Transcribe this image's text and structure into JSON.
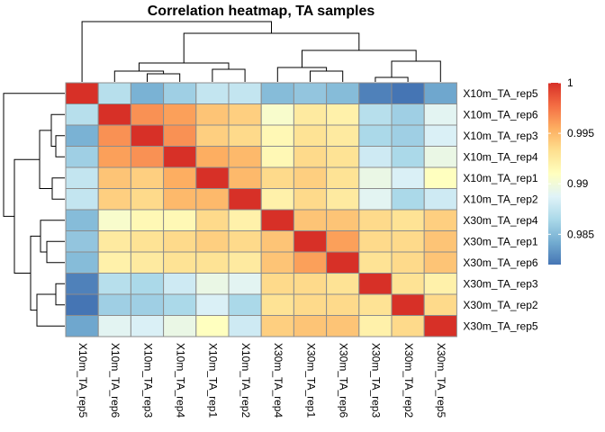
{
  "chart_data": {
    "type": "heatmap",
    "title": "Correlation heatmap, TA samples",
    "rows": [
      "X10m_TA_rep5",
      "X10m_TA_rep6",
      "X10m_TA_rep3",
      "X10m_TA_rep4",
      "X10m_TA_rep1",
      "X10m_TA_rep2",
      "X30m_TA_rep4",
      "X30m_TA_rep1",
      "X30m_TA_rep6",
      "X30m_TA_rep3",
      "X30m_TA_rep2",
      "X30m_TA_rep5"
    ],
    "columns": [
      "X10m_TA_rep5",
      "X10m_TA_rep6",
      "X10m_TA_rep3",
      "X10m_TA_rep4",
      "X10m_TA_rep1",
      "X10m_TA_rep2",
      "X30m_TA_rep4",
      "X30m_TA_rep1",
      "X30m_TA_rep6",
      "X30m_TA_rep3",
      "X30m_TA_rep2",
      "X30m_TA_rep5"
    ],
    "values": [
      [
        1.0,
        0.987,
        0.9845,
        0.986,
        0.9875,
        0.9875,
        0.985,
        0.9855,
        0.985,
        0.9825,
        0.9815,
        0.984
      ],
      [
        0.987,
        1.0,
        0.9965,
        0.996,
        0.9945,
        0.994,
        0.9905,
        0.9925,
        0.992,
        0.987,
        0.986,
        0.989
      ],
      [
        0.9845,
        0.9965,
        1.0,
        0.9965,
        0.994,
        0.9935,
        0.9915,
        0.993,
        0.9925,
        0.9865,
        0.986,
        0.9885
      ],
      [
        0.986,
        0.996,
        0.9965,
        1.0,
        0.9955,
        0.995,
        0.9915,
        0.9935,
        0.993,
        0.988,
        0.9865,
        0.9895
      ],
      [
        0.9875,
        0.9945,
        0.994,
        0.9955,
        1.0,
        0.995,
        0.9935,
        0.994,
        0.993,
        0.9895,
        0.9885,
        0.991
      ],
      [
        0.9875,
        0.994,
        0.9935,
        0.995,
        0.995,
        1.0,
        0.992,
        0.9935,
        0.9925,
        0.989,
        0.9865,
        0.988
      ],
      [
        0.985,
        0.9905,
        0.9915,
        0.9915,
        0.9935,
        0.992,
        1.0,
        0.9945,
        0.9945,
        0.9935,
        0.993,
        0.994
      ],
      [
        0.9855,
        0.9925,
        0.993,
        0.9935,
        0.994,
        0.9935,
        0.9945,
        1.0,
        0.996,
        0.9935,
        0.9935,
        0.9945
      ],
      [
        0.985,
        0.992,
        0.9925,
        0.993,
        0.993,
        0.9925,
        0.9945,
        0.996,
        1.0,
        0.993,
        0.9935,
        0.9945
      ],
      [
        0.9825,
        0.987,
        0.9865,
        0.988,
        0.9895,
        0.989,
        0.9935,
        0.9935,
        0.993,
        1.0,
        0.993,
        0.992
      ],
      [
        0.9815,
        0.986,
        0.986,
        0.9865,
        0.9885,
        0.9865,
        0.993,
        0.9935,
        0.9935,
        0.993,
        1.0,
        0.9935
      ],
      [
        0.984,
        0.989,
        0.9885,
        0.9895,
        0.991,
        0.988,
        0.994,
        0.9945,
        0.9945,
        0.992,
        0.9935,
        1.0
      ]
    ],
    "colorbar": {
      "range": [
        0.982,
        1.0
      ],
      "ticks": [
        0.985,
        0.99,
        0.995,
        1
      ],
      "tick_labels": [
        "0.985",
        "0.99",
        "0.995",
        "1"
      ],
      "colors": [
        "#4575b4",
        "#74add1",
        "#abd9e9",
        "#e0f3f8",
        "#ffffbf",
        "#fee090",
        "#fdae61",
        "#f46d43",
        "#d73027"
      ]
    },
    "cell_border_color": "#8c8c8c",
    "legend_position": "right",
    "dendrograms": [
      "top",
      "left"
    ]
  }
}
